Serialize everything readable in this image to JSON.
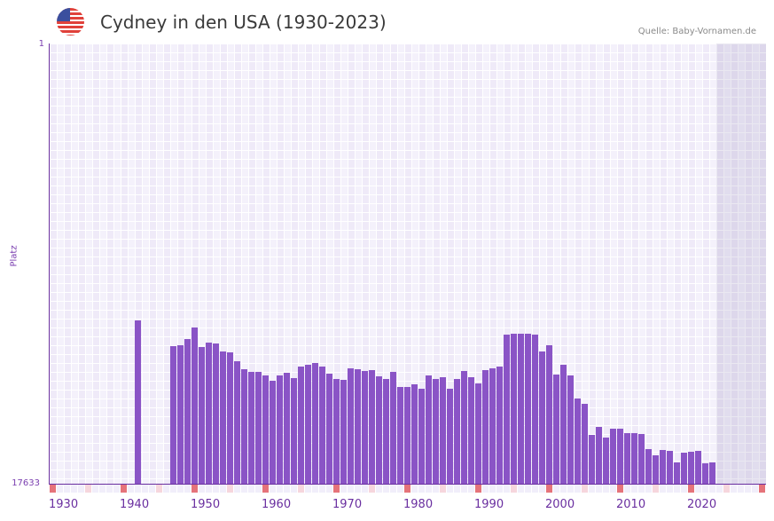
{
  "header": {
    "title": "Cydney in den USA (1930-2023)",
    "source": "Quelle: Baby-Vornamen.de",
    "flag_icon": "us-flag-icon"
  },
  "colors": {
    "bar": "#8a54c6",
    "axis": "#6a2fa0",
    "decade_marker": "#e5737a",
    "half_decade_marker": "#f6d6dd",
    "grid_bg": "#f4f1fb"
  },
  "chart_data": {
    "type": "bar",
    "title": "Cydney in den USA (1930-2023)",
    "xlabel": "",
    "ylabel": "Platz",
    "y_inverted": true,
    "ylim": [
      1,
      17633
    ],
    "y_ticks": [
      "1",
      "17633"
    ],
    "x_ticks": [
      "1930",
      "1940",
      "1950",
      "1960",
      "1970",
      "1980",
      "1990",
      "2000",
      "2010",
      "2020"
    ],
    "grid": true,
    "categories": [
      1940,
      1945,
      1946,
      1947,
      1948,
      1949,
      1950,
      1951,
      1952,
      1953,
      1954,
      1955,
      1956,
      1957,
      1958,
      1959,
      1960,
      1961,
      1962,
      1963,
      1964,
      1965,
      1966,
      1967,
      1968,
      1969,
      1970,
      1971,
      1972,
      1973,
      1974,
      1975,
      1976,
      1977,
      1978,
      1979,
      1980,
      1981,
      1982,
      1983,
      1984,
      1985,
      1986,
      1987,
      1988,
      1989,
      1990,
      1991,
      1992,
      1993,
      1994,
      1995,
      1996,
      1997,
      1998,
      1999,
      2000,
      2001,
      2002,
      2003,
      2004,
      2005,
      2006,
      2007,
      2008,
      2009,
      2010,
      2011,
      2012,
      2013,
      2014,
      2015,
      2016,
      2017,
      2018,
      2019,
      2020,
      2021
    ],
    "values": [
      11093,
      12124,
      12088,
      11839,
      11377,
      12159,
      11981,
      12017,
      12337,
      12372,
      12728,
      13048,
      13154,
      13154,
      13296,
      13510,
      13296,
      13190,
      13403,
      12941,
      12870,
      12799,
      12941,
      13225,
      13439,
      13474,
      13012,
      13048,
      13119,
      13083,
      13332,
      13439,
      13154,
      13758,
      13758,
      13652,
      13829,
      13296,
      13439,
      13368,
      13829,
      13439,
      13119,
      13368,
      13616,
      13083,
      13012,
      12941,
      11661,
      11625,
      11625,
      11625,
      11661,
      12337,
      12088,
      13261,
      12870,
      13296,
      14221,
      14434,
      15678,
      15358,
      15785,
      15430,
      15430,
      15607,
      15607,
      15643,
      16247,
      16496,
      16283,
      16318,
      16780,
      16389,
      16354,
      16318,
      16816,
      16780
    ],
    "x_range": [
      1928,
      2028
    ]
  },
  "axis": {
    "ylabel": "Platz",
    "ytop": "1",
    "ybottom": "17633",
    "xticks": [
      "1930",
      "1940",
      "1950",
      "1960",
      "1970",
      "1980",
      "1990",
      "2000",
      "2010",
      "2020"
    ]
  }
}
